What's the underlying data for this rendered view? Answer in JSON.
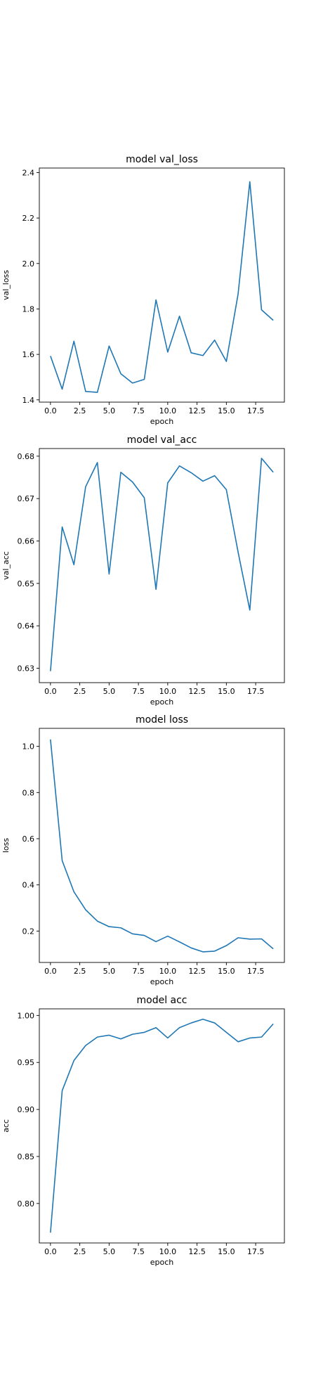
{
  "chart_data": [
    {
      "type": "line",
      "title": "model val_loss",
      "xlabel": "epoch",
      "ylabel": "val_loss",
      "xlim": [
        -0.95,
        19.95
      ],
      "ylim": [
        1.39,
        2.42
      ],
      "xticks": [
        0,
        2.5,
        5,
        7.5,
        10,
        12.5,
        15,
        17.5
      ],
      "xtick_labels": [
        "0.0",
        "2.5",
        "5.0",
        "7.5",
        "10.0",
        "12.5",
        "15.0",
        "17.5"
      ],
      "yticks": [
        1.4,
        1.6,
        1.8,
        2.0,
        2.2,
        2.4
      ],
      "ytick_labels": [
        "1.4",
        "1.6",
        "1.8",
        "2.0",
        "2.2",
        "2.4"
      ],
      "grid": false,
      "color": "#1f77b4",
      "x": [
        0,
        1,
        2,
        3,
        4,
        5,
        6,
        7,
        8,
        9,
        10,
        11,
        12,
        13,
        14,
        15,
        16,
        17,
        18,
        19
      ],
      "y": [
        1.593,
        1.447,
        1.658,
        1.437,
        1.433,
        1.637,
        1.515,
        1.474,
        1.49,
        1.84,
        1.61,
        1.768,
        1.607,
        1.595,
        1.663,
        1.569,
        1.865,
        2.36,
        1.796,
        1.75
      ]
    },
    {
      "type": "line",
      "title": "model val_acc",
      "xlabel": "epoch",
      "ylabel": "val_acc",
      "xlim": [
        -0.95,
        19.95
      ],
      "ylim": [
        0.6266,
        0.6818
      ],
      "xticks": [
        0,
        2.5,
        5,
        7.5,
        10,
        12.5,
        15,
        17.5
      ],
      "xtick_labels": [
        "0.0",
        "2.5",
        "5.0",
        "7.5",
        "10.0",
        "12.5",
        "15.0",
        "17.5"
      ],
      "yticks": [
        0.63,
        0.64,
        0.65,
        0.66,
        0.67,
        0.68
      ],
      "ytick_labels": [
        "0.63",
        "0.64",
        "0.65",
        "0.66",
        "0.67",
        "0.68"
      ],
      "grid": false,
      "color": "#1f77b4",
      "x": [
        0,
        1,
        2,
        3,
        4,
        5,
        6,
        7,
        8,
        9,
        10,
        11,
        12,
        13,
        14,
        15,
        16,
        17,
        18,
        19
      ],
      "y": [
        0.6293,
        0.6633,
        0.6544,
        0.6728,
        0.6785,
        0.6522,
        0.6762,
        0.6739,
        0.6702,
        0.6486,
        0.6737,
        0.6777,
        0.6761,
        0.6741,
        0.6754,
        0.6721,
        0.6574,
        0.6437,
        0.6795,
        0.6762
      ]
    },
    {
      "type": "line",
      "title": "model loss",
      "xlabel": "epoch",
      "ylabel": "loss",
      "xlim": [
        -0.95,
        19.95
      ],
      "ylim": [
        0.064,
        1.078
      ],
      "xticks": [
        0,
        2.5,
        5,
        7.5,
        10,
        12.5,
        15,
        17.5
      ],
      "xtick_labels": [
        "0.0",
        "2.5",
        "5.0",
        "7.5",
        "10.0",
        "12.5",
        "15.0",
        "17.5"
      ],
      "yticks": [
        0.2,
        0.4,
        0.6,
        0.8,
        1.0
      ],
      "ytick_labels": [
        "0.2",
        "0.4",
        "0.6",
        "0.8",
        "1.0"
      ],
      "grid": false,
      "color": "#1f77b4",
      "x": [
        0,
        1,
        2,
        3,
        4,
        5,
        6,
        7,
        8,
        9,
        10,
        11,
        12,
        13,
        14,
        15,
        16,
        17,
        18,
        19
      ],
      "y": [
        1.03,
        0.505,
        0.37,
        0.292,
        0.243,
        0.219,
        0.214,
        0.188,
        0.181,
        0.154,
        0.178,
        0.153,
        0.127,
        0.11,
        0.113,
        0.137,
        0.171,
        0.165,
        0.166,
        0.123
      ]
    },
    {
      "type": "line",
      "title": "model acc",
      "xlabel": "epoch",
      "ylabel": "acc",
      "xlim": [
        -0.95,
        19.95
      ],
      "ylim": [
        0.758,
        1.007
      ],
      "xticks": [
        0,
        2.5,
        5,
        7.5,
        10,
        12.5,
        15,
        17.5
      ],
      "xtick_labels": [
        "0.0",
        "2.5",
        "5.0",
        "7.5",
        "10.0",
        "12.5",
        "15.0",
        "17.5"
      ],
      "yticks": [
        0.8,
        0.85,
        0.9,
        0.95,
        1.0
      ],
      "ytick_labels": [
        "0.80",
        "0.85",
        "0.90",
        "0.95",
        "1.00"
      ],
      "grid": false,
      "color": "#1f77b4",
      "x": [
        0,
        1,
        2,
        3,
        4,
        5,
        6,
        7,
        8,
        9,
        10,
        11,
        12,
        13,
        14,
        15,
        16,
        17,
        18,
        19
      ],
      "y": [
        0.769,
        0.92,
        0.952,
        0.968,
        0.977,
        0.979,
        0.975,
        0.98,
        0.982,
        0.987,
        0.976,
        0.987,
        0.992,
        0.996,
        0.992,
        0.982,
        0.972,
        0.976,
        0.977,
        0.991
      ]
    }
  ]
}
